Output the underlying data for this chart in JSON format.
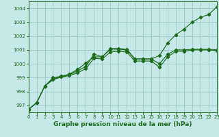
{
  "title": "Graphe pression niveau de la mer (hPa)",
  "bg_color": "#c6e8e8",
  "grid_color": "#9dcece",
  "line_color": "#1a6b1a",
  "xlim": [
    0,
    23
  ],
  "ylim": [
    996.5,
    1004.5
  ],
  "yticks": [
    997,
    998,
    999,
    1000,
    1001,
    1002,
    1003,
    1004
  ],
  "xticks": [
    0,
    1,
    2,
    3,
    4,
    5,
    6,
    7,
    8,
    9,
    10,
    11,
    12,
    13,
    14,
    15,
    16,
    17,
    18,
    19,
    20,
    21,
    22,
    23
  ],
  "line1_y": [
    996.7,
    997.2,
    998.4,
    998.9,
    999.1,
    999.2,
    999.5,
    999.8,
    1000.7,
    1000.5,
    1001.1,
    1001.1,
    1001.05,
    1000.35,
    1000.35,
    1000.35,
    1000.6,
    1001.5,
    1002.1,
    1002.5,
    1003.0,
    1003.35,
    1003.55,
    1004.1
  ],
  "line2_y": [
    996.7,
    997.2,
    998.4,
    999.0,
    999.1,
    999.25,
    999.6,
    1000.05,
    1000.5,
    1000.5,
    1001.05,
    1001.05,
    1001.0,
    1000.35,
    1000.35,
    1000.35,
    1000.0,
    1000.7,
    1001.0,
    1001.0,
    1001.05,
    1001.05,
    1001.05,
    1001.0
  ],
  "line3_y": [
    996.7,
    997.2,
    998.4,
    998.85,
    999.05,
    999.15,
    999.35,
    999.65,
    1000.4,
    1000.35,
    1000.85,
    1000.9,
    1000.85,
    1000.2,
    1000.2,
    1000.2,
    999.75,
    1000.5,
    1000.9,
    1000.9,
    1001.0,
    1001.0,
    1001.0,
    1000.95
  ]
}
